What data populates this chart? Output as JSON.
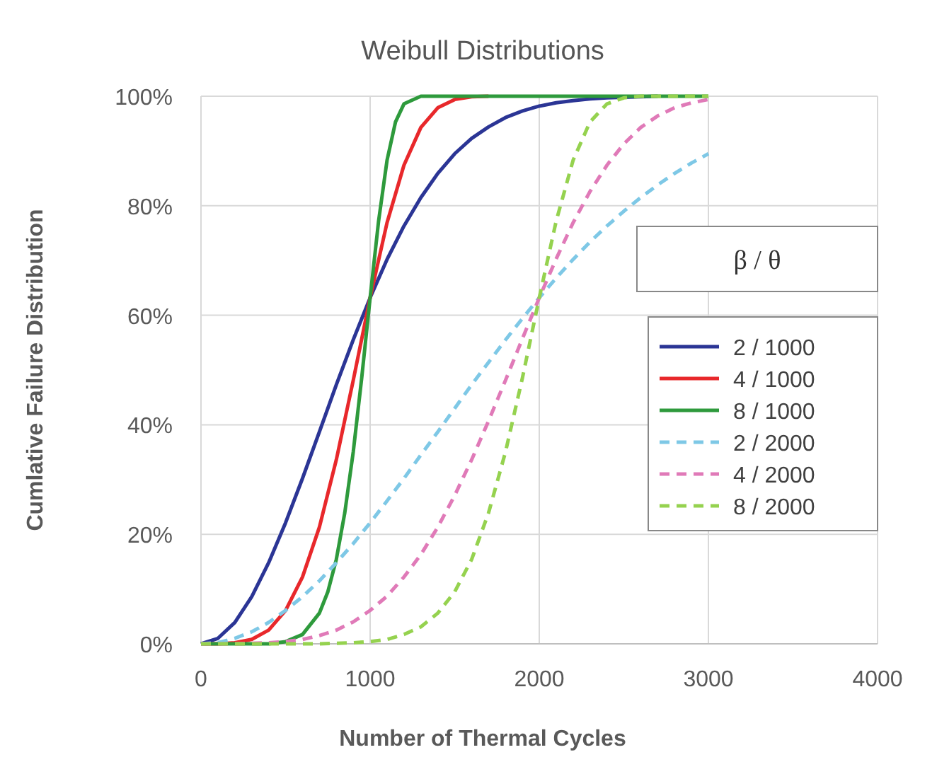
{
  "chart_data": {
    "type": "line",
    "title": "Weibull Distributions",
    "xlabel": "Number of Thermal Cycles",
    "ylabel": "Cumlative Failure Distribution",
    "legend_title": "β / θ",
    "legend": "right",
    "grid": true,
    "xlim": [
      0,
      4000
    ],
    "xticks": [
      0,
      1000,
      2000,
      3000,
      4000
    ],
    "ylim": [
      0,
      100
    ],
    "yticks": [
      {
        "value": 0,
        "label": "0%"
      },
      {
        "value": 20,
        "label": "20%"
      },
      {
        "value": 40,
        "label": "40%"
      },
      {
        "value": 60,
        "label": "60%"
      },
      {
        "value": 80,
        "label": "80%"
      },
      {
        "value": 100,
        "label": "100%"
      }
    ],
    "series": [
      {
        "name": "2 / 1000",
        "color": "#2b3595",
        "line_style": "solid",
        "x": [
          0,
          100,
          200,
          300,
          400,
          500,
          600,
          700,
          800,
          900,
          1000,
          1100,
          1200,
          1300,
          1400,
          1500,
          1600,
          1700,
          1800,
          1900,
          2000,
          2100,
          2200,
          2300,
          2400,
          2500,
          2600,
          2700
        ],
        "values": [
          0,
          1.0,
          3.9,
          8.6,
          14.8,
          22.1,
          30.2,
          38.7,
          47.3,
          55.5,
          63.2,
          70.2,
          76.3,
          81.5,
          85.9,
          89.5,
          92.3,
          94.4,
          96.1,
          97.3,
          98.2,
          98.8,
          99.2,
          99.5,
          99.7,
          99.8,
          99.9,
          100
        ]
      },
      {
        "name": "4 / 1000",
        "color": "#e8282b",
        "line_style": "solid",
        "x": [
          0,
          100,
          200,
          300,
          400,
          500,
          600,
          700,
          800,
          900,
          1000,
          1100,
          1200,
          1300,
          1400,
          1500,
          1600,
          1700
        ],
        "values": [
          0,
          0,
          0.2,
          0.8,
          2.5,
          6.1,
          12.2,
          21.3,
          33.6,
          48.1,
          63.2,
          76.9,
          87.4,
          94.3,
          97.9,
          99.4,
          99.9,
          100
        ]
      },
      {
        "name": "8 / 1000",
        "color": "#2e9a3c",
        "line_style": "solid",
        "x": [
          0,
          400,
          500,
          600,
          700,
          750,
          800,
          850,
          900,
          950,
          1000,
          1050,
          1100,
          1150,
          1200,
          1300,
          1500,
          2000,
          2500,
          3000
        ],
        "values": [
          0,
          0,
          0.4,
          1.7,
          5.6,
          9.5,
          15.4,
          23.9,
          35.0,
          48.5,
          63.2,
          77.2,
          88.3,
          95.3,
          98.6,
          100,
          100,
          100,
          100,
          100
        ]
      },
      {
        "name": "2 / 2000",
        "color": "#7ec8e6",
        "line_style": "dashed",
        "x": [
          0,
          100,
          200,
          300,
          400,
          500,
          600,
          700,
          800,
          900,
          1000,
          1100,
          1200,
          1300,
          1400,
          1500,
          1600,
          1700,
          1800,
          1900,
          2000,
          2100,
          2200,
          2300,
          2400,
          2500,
          2600,
          2700,
          2800,
          2900,
          3000
        ],
        "values": [
          0,
          0.2,
          1.0,
          2.2,
          3.9,
          6.1,
          8.6,
          11.5,
          14.8,
          18.3,
          22.1,
          26.1,
          30.2,
          34.5,
          38.7,
          43.0,
          47.3,
          51.4,
          55.5,
          59.4,
          63.2,
          66.8,
          70.2,
          73.4,
          76.3,
          79.0,
          81.5,
          83.8,
          85.9,
          87.8,
          89.5
        ]
      },
      {
        "name": "4 / 2000",
        "color": "#e07ab8",
        "line_style": "dashed",
        "x": [
          0,
          200,
          300,
          400,
          500,
          600,
          700,
          800,
          900,
          1000,
          1100,
          1200,
          1300,
          1400,
          1500,
          1600,
          1700,
          1800,
          1900,
          2000,
          2100,
          2200,
          2300,
          2400,
          2500,
          2600,
          2700,
          2800,
          2900,
          3000
        ],
        "values": [
          0,
          0,
          0.1,
          0.2,
          0.4,
          0.8,
          1.5,
          2.5,
          4.0,
          6.1,
          8.7,
          12.2,
          16.3,
          21.3,
          27.1,
          33.6,
          40.7,
          48.1,
          55.7,
          63.2,
          70.3,
          76.9,
          82.6,
          87.4,
          91.3,
          94.3,
          96.4,
          97.9,
          98.8,
          99.4
        ]
      },
      {
        "name": "8 / 2000",
        "color": "#95d24f",
        "line_style": "dashed",
        "x": [
          0,
          700,
          800,
          900,
          1000,
          1100,
          1200,
          1300,
          1400,
          1500,
          1600,
          1700,
          1800,
          1900,
          2000,
          2100,
          2200,
          2300,
          2400,
          2500,
          2600,
          2800,
          3000
        ],
        "values": [
          0,
          0,
          0.1,
          0.2,
          0.4,
          0.8,
          1.7,
          3.1,
          5.6,
          9.5,
          15.4,
          23.9,
          35.0,
          48.5,
          63.2,
          77.2,
          88.3,
          95.3,
          98.6,
          99.7,
          100,
          100,
          100
        ]
      }
    ]
  }
}
